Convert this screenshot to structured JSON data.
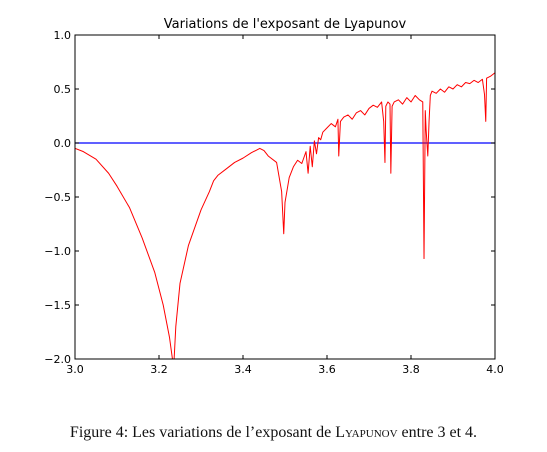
{
  "chart_data": {
    "type": "line",
    "title": "Variations de l'exposant de Lyapunov",
    "xlabel": "",
    "ylabel": "",
    "xlim": [
      3.0,
      4.0
    ],
    "ylim": [
      -2.0,
      1.0
    ],
    "x_ticks": [
      "3.0",
      "3.2",
      "3.4",
      "3.6",
      "3.8",
      "4.0"
    ],
    "y_ticks": [
      "1.0",
      "0.5",
      "0.0",
      "−0.5",
      "−1.0",
      "−1.5",
      "−2.0"
    ],
    "grid": false,
    "series": [
      {
        "color": "#ff0000",
        "x": [
          3.0,
          3.02,
          3.05,
          3.08,
          3.1,
          3.13,
          3.16,
          3.19,
          3.21,
          3.225,
          3.232,
          3.236,
          3.24,
          3.25,
          3.27,
          3.3,
          3.32,
          3.33,
          3.34,
          3.36,
          3.38,
          3.4,
          3.42,
          3.44,
          3.45,
          3.46,
          3.48,
          3.492,
          3.497,
          3.5,
          3.51,
          3.52,
          3.53,
          3.54,
          3.55,
          3.555,
          3.56,
          3.565,
          3.57,
          3.575,
          3.58,
          3.585,
          3.59,
          3.6,
          3.61,
          3.62,
          3.626,
          3.628,
          3.632,
          3.64,
          3.65,
          3.66,
          3.67,
          3.68,
          3.69,
          3.7,
          3.71,
          3.72,
          3.73,
          3.735,
          3.738,
          3.74,
          3.745,
          3.75,
          3.752,
          3.755,
          3.76,
          3.77,
          3.78,
          3.79,
          3.8,
          3.81,
          3.82,
          3.828,
          3.831,
          3.834,
          3.836,
          3.84,
          3.843,
          3.846,
          3.85,
          3.86,
          3.87,
          3.88,
          3.89,
          3.9,
          3.91,
          3.92,
          3.93,
          3.94,
          3.95,
          3.96,
          3.97,
          3.975,
          3.978,
          3.98,
          3.99,
          4.0
        ],
        "y": [
          -0.05,
          -0.08,
          -0.15,
          -0.28,
          -0.4,
          -0.6,
          -0.88,
          -1.2,
          -1.5,
          -1.8,
          -2.0,
          -2.0,
          -1.7,
          -1.3,
          -0.95,
          -0.62,
          -0.45,
          -0.35,
          -0.3,
          -0.24,
          -0.18,
          -0.14,
          -0.09,
          -0.05,
          -0.07,
          -0.12,
          -0.18,
          -0.45,
          -0.84,
          -0.55,
          -0.32,
          -0.22,
          -0.16,
          -0.19,
          -0.08,
          -0.28,
          -0.03,
          -0.22,
          0.02,
          -0.1,
          0.05,
          0.03,
          0.1,
          0.14,
          0.18,
          0.15,
          0.22,
          -0.12,
          0.2,
          0.24,
          0.26,
          0.22,
          0.28,
          0.3,
          0.26,
          0.32,
          0.35,
          0.33,
          0.38,
          0.2,
          -0.18,
          0.34,
          0.38,
          0.36,
          -0.28,
          0.34,
          0.38,
          0.4,
          0.36,
          0.42,
          0.38,
          0.44,
          0.4,
          0.38,
          -1.07,
          0.3,
          0.12,
          -0.12,
          0.2,
          0.44,
          0.48,
          0.46,
          0.5,
          0.47,
          0.52,
          0.5,
          0.54,
          0.52,
          0.56,
          0.55,
          0.58,
          0.56,
          0.59,
          0.45,
          0.2,
          0.6,
          0.62,
          0.65
        ]
      },
      {
        "color": "#0000ff",
        "x": [
          3.0,
          4.0
        ],
        "y": [
          0.0,
          0.0
        ]
      }
    ]
  },
  "caption": {
    "prefix": "Figure 4: Les variations de l’exposant de ",
    "name": "Lyapunov",
    "suffix": " entre 3 et 4."
  }
}
